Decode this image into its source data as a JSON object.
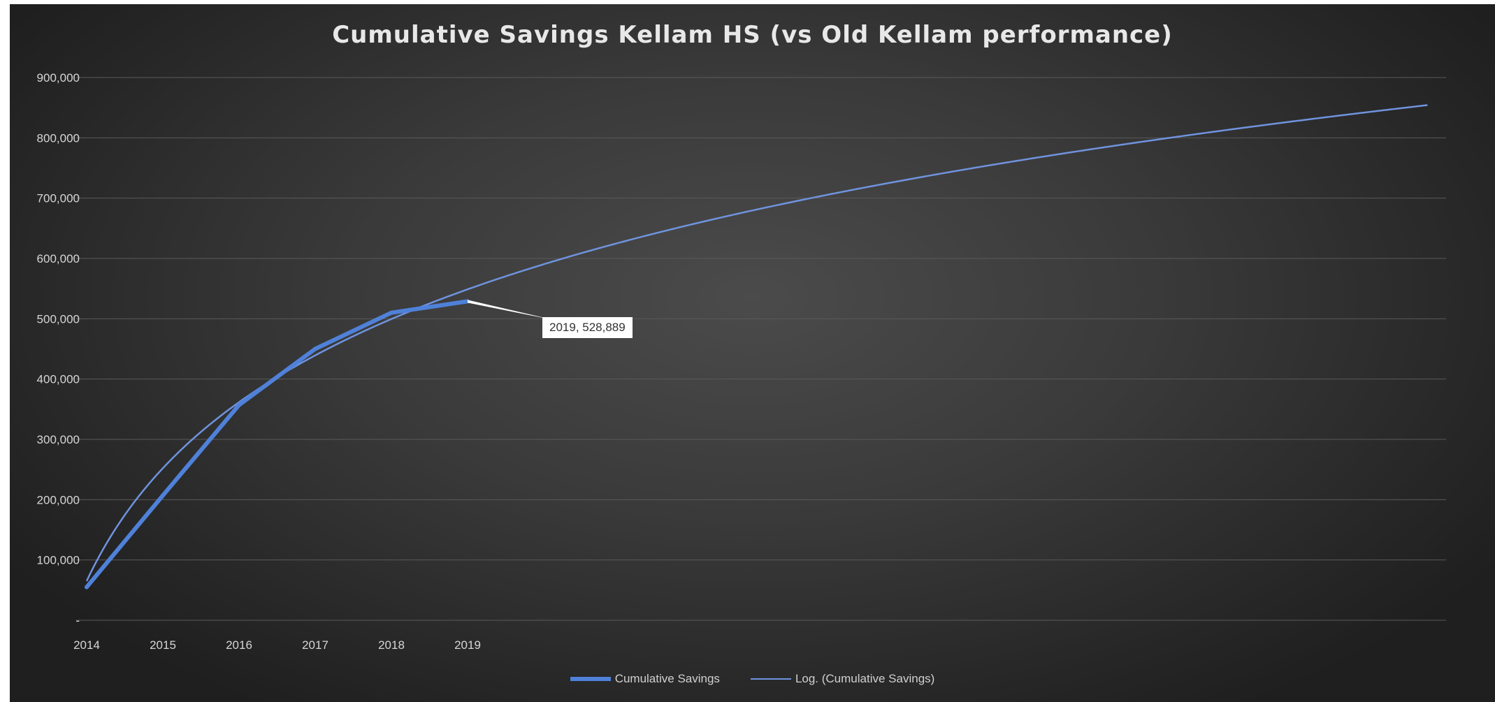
{
  "chart_data": {
    "type": "line",
    "title": "Cumulative Savings Kellam HS (vs Old Kellam performance)",
    "xlabel": "",
    "ylabel": "",
    "categories": [
      "2014",
      "2015",
      "2016",
      "2017",
      "2018",
      "2019"
    ],
    "y_ticks": [
      "-",
      "100,000",
      "200,000",
      "300,000",
      "400,000",
      "500,000",
      "600,000",
      "700,000",
      "800,000",
      "900,000"
    ],
    "ylim": [
      0,
      900000
    ],
    "grid": true,
    "legend_position": "bottom",
    "series": [
      {
        "name": "Cumulative Savings",
        "color": "#4f81d9",
        "x": [
          1,
          2,
          3,
          4,
          5,
          6
        ],
        "values": [
          55000,
          207000,
          357000,
          450000,
          510000,
          528889
        ]
      },
      {
        "name": "Log. (Cumulative Savings)",
        "type": "logarithmic-trendline",
        "color": "#6f93de",
        "x_extent": [
          1,
          18.6
        ],
        "model": {
          "a": 65000,
          "b": 270000
        }
      }
    ],
    "annotations": [
      {
        "text": "2019, 528,889",
        "x": 6,
        "y": 528889
      }
    ]
  }
}
